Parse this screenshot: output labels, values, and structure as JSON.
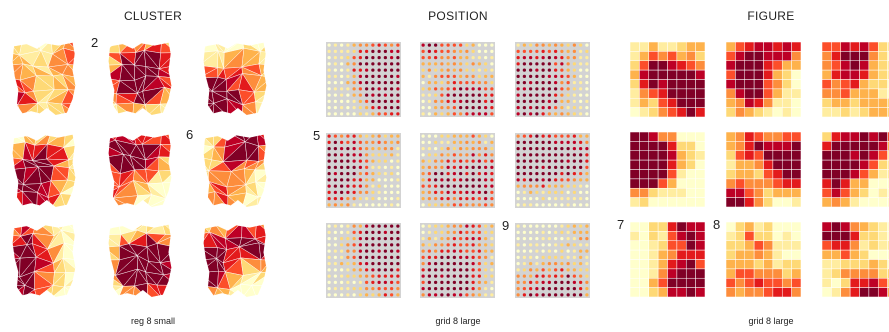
{
  "palette": [
    "#ffffcc",
    "#ffeda0",
    "#fed976",
    "#feb24c",
    "#fd8d3c",
    "#fc4e2a",
    "#e31a1c",
    "#bd0026",
    "#800026"
  ],
  "dot_background": "#d3d3d3",
  "groups": [
    {
      "title": "CLUSTER",
      "caption": "reg 8 small",
      "panel_type": "map",
      "panels": [
        {
          "label": "",
          "seed": 11
        },
        {
          "label": "2",
          "seed": 23
        },
        {
          "label": "",
          "seed": 37
        },
        {
          "label": "",
          "seed": 41
        },
        {
          "label": "",
          "seed": 53
        },
        {
          "label": "6",
          "seed": 67
        },
        {
          "label": "",
          "seed": 71
        },
        {
          "label": "",
          "seed": 83
        },
        {
          "label": "",
          "seed": 97
        }
      ]
    },
    {
      "title": "POSITION",
      "caption": "grid 8 large",
      "panel_type": "dots",
      "grid_size": 12,
      "panels": [
        {
          "label": "",
          "seed": 101
        },
        {
          "label": "",
          "seed": 113
        },
        {
          "label": "",
          "seed": 127
        },
        {
          "label": "5",
          "seed": 131
        },
        {
          "label": "",
          "seed": 139
        },
        {
          "label": "",
          "seed": 149
        },
        {
          "label": "",
          "seed": 157
        },
        {
          "label": "",
          "seed": 163
        },
        {
          "label": "9",
          "seed": 173
        }
      ]
    },
    {
      "title": "FIGURE",
      "caption": "grid 8 large",
      "panel_type": "grid",
      "grid_size": 8,
      "panels": [
        {
          "label": "",
          "seed": 181
        },
        {
          "label": "",
          "seed": 191
        },
        {
          "label": "",
          "seed": 193
        },
        {
          "label": "",
          "seed": 197
        },
        {
          "label": "",
          "seed": 199
        },
        {
          "label": "",
          "seed": 211
        },
        {
          "label": "7",
          "seed": 223
        },
        {
          "label": "8",
          "seed": 227
        },
        {
          "label": "",
          "seed": 229
        }
      ]
    }
  ]
}
